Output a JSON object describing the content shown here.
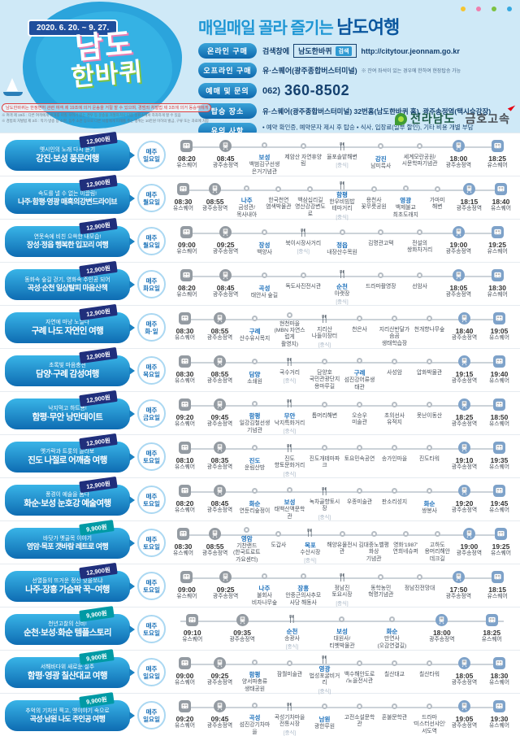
{
  "header": {
    "date_range": "2020. 6. 20. ~ 9. 27.",
    "logo_top": "남도",
    "logo_bottom": "한바퀴",
    "title_light": "매일매일 골라 즐기는 ",
    "title_bold": "남도여행",
    "dot_colors": [
      "#f5c531",
      "#ef7fae",
      "#7dc242",
      "#35a8e0"
    ],
    "online": {
      "label": "온라인 구매",
      "prefix": "검색창에",
      "search_word": "남도한바퀴",
      "search_btn": "검색",
      "url": "http://citytour.jeonnam.go.kr"
    },
    "offline": {
      "label": "오프라인 구매",
      "value": "유·스퀘어(광주종합버스터미널)",
      "note": "※ 잔여 좌석이 있는 경우에 한하여 현장탑승 가능"
    },
    "booking": {
      "label": "예매 및 문의",
      "area_code": "062)",
      "phone": "360-8502"
    },
    "boarding": {
      "label": "탑승 장소",
      "value": "유·스퀘어(광주종합버스터미널) 32번홈(남도한바퀴 홈), 광주송정역(택시승강장)"
    },
    "caution": {
      "label": "유의 사항",
      "lines": "• 예약 확인증, 예약문자 제시 후 탑승 • 식사, 입장료(일부 할인), 기타 비용 개별 부담\n• 날씨(기상 악화)와 도로상황 등으로 시간 및 코스 변경 가능(대체 코스 운행)\n• 차량 보험만 포함(여행자 보험 불포함)"
    },
    "notice_red": "남도한바퀴는 한정면허 관련 여객 제 19조에 의거 운송을 거절 할 수 있으며, 경범죄 처벌법 제 3조에 의거 동승객에게 고발당할 수 있습니다",
    "notice_fine1": "※ 여객 제 19조 : 다른 여객에게 위해를 끼칠 우려가 있는 경우 등 운송을 거절하거나 다음 정류소에서 하차하게 할 수 있음",
    "notice_fine2": "※ 경범죄 처벌법 제 3조 : 악기·방송 등 소란, 음주 소란 등으로 다른 사람에게 피해를 주는 행위는 10만원 이하의 벌금, 구류 또는 과료에 처함",
    "brand_jeonnam": "전라남도",
    "brand_kumho": "금호고속"
  },
  "labels": {
    "meal": "[중식]",
    "weekly": "매주"
  },
  "tours": [
    {
      "price": "12,900원",
      "price_style": "navy",
      "subtitle": "옛시인의 노래 다시 듣기",
      "title": "강진·보성 풍문여행",
      "day": "일요일",
      "stops": [
        {
          "type": "bus",
          "time": "08:20",
          "name": "유스퀘어"
        },
        {
          "type": "train",
          "time": "08:45",
          "name": "광주송정역"
        },
        {
          "type": "stop",
          "city": "보성",
          "name": "백범김구선생\n은거기념관"
        },
        {
          "type": "stop",
          "name": "제암산 자연휴양림"
        },
        {
          "type": "meal",
          "name": "율포솔밭해변"
        },
        {
          "type": "stop",
          "city": "강진",
          "name": "남미륵사"
        },
        {
          "type": "stop",
          "name": "세계모란공원/\n시문학파기념관"
        },
        {
          "type": "train-end",
          "time": "18:00",
          "name": "광주송정역"
        },
        {
          "type": "bus-end",
          "time": "18:25",
          "name": "유스퀘어"
        }
      ]
    },
    {
      "price": "12,900원",
      "price_style": "navy",
      "subtitle": "속도를 낼 수 없는 이끌림!",
      "title": "나주·함평·영광 매혹의강변드라이브",
      "day": "월요일",
      "stops": [
        {
          "type": "bus",
          "time": "08:30",
          "name": "유스퀘어"
        },
        {
          "type": "train",
          "time": "08:55",
          "name": "광주송정역"
        },
        {
          "type": "stop",
          "city": "나주",
          "name": "금성관/\n목사내아"
        },
        {
          "type": "stop",
          "name": "한국천연\n염색박물관"
        },
        {
          "type": "stop",
          "name": "백삼십리길\n영산강강변도로"
        },
        {
          "type": "meal",
          "city": "함평",
          "name": "한우비빔밥\n테마거리"
        },
        {
          "type": "stop",
          "name": "용천사\n꽃무릇공원"
        },
        {
          "type": "stop",
          "city": "영광",
          "name": "백제불교\n최초도래지"
        },
        {
          "type": "stop",
          "name": "가마미\n해변"
        },
        {
          "type": "train-end",
          "time": "18:15",
          "name": "광주송정역"
        },
        {
          "type": "bus-end",
          "time": "18:40",
          "name": "유스퀘어"
        }
      ]
    },
    {
      "price": "12,900원",
      "price_style": "navy",
      "subtitle": "연못속에 비친 으쓱한 내모습!",
      "title": "장성·정읍 행복한 입꼬리 여행",
      "day": "월요일",
      "stops": [
        {
          "type": "bus",
          "time": "09:00",
          "name": "유스퀘어"
        },
        {
          "type": "train",
          "time": "09:25",
          "name": "광주송정역"
        },
        {
          "type": "stop",
          "city": "장성",
          "name": "백양사"
        },
        {
          "type": "meal",
          "name": "북이시장사거리"
        },
        {
          "type": "stop",
          "city": "정읍",
          "name": "내장산수목원"
        },
        {
          "type": "stop",
          "name": "김명관고택"
        },
        {
          "type": "stop",
          "name": "전설의\n쌍화차거리"
        },
        {
          "type": "train-end",
          "time": "19:00",
          "name": "광주송정역"
        },
        {
          "type": "bus-end",
          "time": "19:25",
          "name": "유스퀘어"
        }
      ]
    },
    {
      "price": "12,900원",
      "price_style": "navy",
      "subtitle": "동화속 숲길 걷기, 영화속 주인공 되어",
      "title": "곡성·순천 일상탈피 마음산책",
      "day": "화요일",
      "stops": [
        {
          "type": "bus",
          "time": "08:20",
          "name": "유스퀘어"
        },
        {
          "type": "train",
          "time": "08:45",
          "name": "광주송정역"
        },
        {
          "type": "stop",
          "city": "곡성",
          "name": "태안사 숲길"
        },
        {
          "type": "stop",
          "name": "독도사진전시관"
        },
        {
          "type": "meal",
          "city": "순천",
          "name": "아랫장"
        },
        {
          "type": "stop",
          "name": "드라마촬영장"
        },
        {
          "type": "stop",
          "name": "선암사"
        },
        {
          "type": "train-end",
          "time": "18:05",
          "name": "광주송정역"
        },
        {
          "type": "bus-end",
          "time": "18:30",
          "name": "유스퀘어"
        }
      ]
    },
    {
      "price": "12,900원",
      "price_style": "navy",
      "subtitle": "자연에 마냥 노닐다",
      "title": "구례 나도 자연인 여행",
      "day": "화·일",
      "stops": [
        {
          "type": "bus",
          "time": "08:30",
          "name": "유스퀘어"
        },
        {
          "type": "train",
          "time": "08:55",
          "name": "광주송정역"
        },
        {
          "type": "stop",
          "city": "구례",
          "name": "산수유시목지"
        },
        {
          "type": "stop",
          "name": "현천마을\n(MBN 자연스럽게\n촬영지)"
        },
        {
          "type": "meal",
          "name": "지리산\n나들이장터"
        },
        {
          "type": "stop",
          "name": "천은사"
        },
        {
          "type": "stop",
          "name": "지리산반달가슴곰\n생태학습장"
        },
        {
          "type": "stop",
          "name": "천개향나무숲"
        },
        {
          "type": "train-end",
          "time": "18:40",
          "name": "광주송정역"
        },
        {
          "type": "bus-end",
          "time": "19:05",
          "name": "유스퀘어"
        }
      ]
    },
    {
      "price": "12,900원",
      "price_style": "navy",
      "subtitle": "초록빛 마음충전",
      "title": "담양·구례 감성여행",
      "day": "목요일",
      "stops": [
        {
          "type": "bus",
          "time": "08:30",
          "name": "유스퀘어"
        },
        {
          "type": "train",
          "time": "08:55",
          "name": "광주송정역"
        },
        {
          "type": "stop",
          "city": "담양",
          "name": "소쇄원"
        },
        {
          "type": "meal",
          "name": "국수거리"
        },
        {
          "type": "stop",
          "name": "담양호\n국민관광단지\n용마루길"
        },
        {
          "type": "stop",
          "city": "구례",
          "name": "섬진강어류생태관"
        },
        {
          "type": "stop",
          "name": "사성암"
        },
        {
          "type": "stop",
          "name": "압화박물관"
        },
        {
          "type": "train-end",
          "time": "19:15",
          "name": "광주송정역"
        },
        {
          "type": "bus-end",
          "time": "19:40",
          "name": "유스퀘어"
        }
      ]
    },
    {
      "price": "12,900원",
      "price_style": "navy",
      "subtitle": "낙지먹고 하트뿅!",
      "title": "함평·무안 낭만데이트",
      "day": "금요일",
      "stops": [
        {
          "type": "bus",
          "time": "09:20",
          "name": "유스퀘어"
        },
        {
          "type": "train",
          "time": "09:45",
          "name": "광주송정역"
        },
        {
          "type": "stop",
          "city": "함평",
          "name": "일강김철선생\n기념관"
        },
        {
          "type": "meal",
          "city": "무안",
          "name": "낙지특화거리"
        },
        {
          "type": "stop",
          "name": "톱머리해변"
        },
        {
          "type": "stop",
          "name": "오승우\n미술관"
        },
        {
          "type": "stop",
          "name": "초의선사\n유적지"
        },
        {
          "type": "stop",
          "name": "못난이동산"
        },
        {
          "type": "train-end",
          "time": "18:25",
          "name": "광주송정역"
        },
        {
          "type": "bus-end",
          "time": "18:50",
          "name": "유스퀘어"
        }
      ]
    },
    {
      "price": "12,900원",
      "price_style": "navy",
      "subtitle": "옛가락과 트롯의 콜라보",
      "title": "진도 나절로 어깨춤 여행",
      "day": "토요일",
      "stops": [
        {
          "type": "bus",
          "time": "08:10",
          "name": "유스퀘어"
        },
        {
          "type": "train",
          "time": "08:35",
          "name": "광주송정역"
        },
        {
          "type": "stop",
          "city": "진도",
          "name": "운림산방"
        },
        {
          "type": "meal",
          "name": "진도\n향토문화거리"
        },
        {
          "type": "stop",
          "name": "진도개테마파크"
        },
        {
          "type": "stop",
          "name": "토요민속공연"
        },
        {
          "type": "stop",
          "name": "송가인마을"
        },
        {
          "type": "stop",
          "name": "진도타워"
        },
        {
          "type": "train-end",
          "time": "19:10",
          "name": "광주송정역"
        },
        {
          "type": "bus-end",
          "time": "19:35",
          "name": "유스퀘어"
        }
      ]
    },
    {
      "price": "12,900원",
      "price_style": "navy",
      "subtitle": "풍경이 예술을 품다",
      "title": "화순·보성 눈호강 예술여행",
      "day": "토요일",
      "stops": [
        {
          "type": "bus",
          "time": "08:20",
          "name": "유스퀘어"
        },
        {
          "type": "train",
          "time": "08:45",
          "name": "광주송정역"
        },
        {
          "type": "stop",
          "city": "화순",
          "name": "연둔리숲정이"
        },
        {
          "type": "stop",
          "city": "보성",
          "name": "태백산맥문학관"
        },
        {
          "type": "meal",
          "name": "녹차골향토시장"
        },
        {
          "type": "stop",
          "name": "우종미술관"
        },
        {
          "type": "stop",
          "name": "판소리성지"
        },
        {
          "type": "stop",
          "city": "화순",
          "name": "쌍봉사"
        },
        {
          "type": "train-end",
          "time": "19:20",
          "name": "광주송정역"
        },
        {
          "type": "bus-end",
          "time": "19:45",
          "name": "유스퀘어"
        }
      ]
    },
    {
      "price": "9,900원",
      "price_style": "teal",
      "subtitle": "바닷가 옛골목 이야기",
      "title": "영암·목포 갯바람 레트로 여행",
      "day": "토요일",
      "stops": [
        {
          "type": "bus",
          "time": "08:30",
          "name": "유스퀘어"
        },
        {
          "type": "train",
          "time": "08:55",
          "name": "광주송정역"
        },
        {
          "type": "stop",
          "city": "영암",
          "name": "기찬랜드\n(한국트로트가요센터)"
        },
        {
          "type": "stop",
          "name": "도갑사"
        },
        {
          "type": "meal",
          "city": "목포",
          "name": "수산시장"
        },
        {
          "type": "stop",
          "name": "해양유물전시관"
        },
        {
          "type": "stop",
          "name": "김대중노벨평화상\n기념관"
        },
        {
          "type": "stop",
          "name": "영화'1987'\n연희네슈퍼"
        },
        {
          "type": "stop",
          "name": "고하도\n용머리해안\n데크길"
        },
        {
          "type": "train-end",
          "time": "19:00",
          "name": "광주송정역"
        },
        {
          "type": "bus-end",
          "time": "19:25",
          "name": "유스퀘어"
        }
      ]
    },
    {
      "price": "12,900원",
      "price_style": "navy",
      "subtitle": "선열들의 뜨거운 정신 잊을쏘냐",
      "title": "나주·장흥 가슴팍 꾹~여행",
      "day": "토요일",
      "stops": [
        {
          "type": "bus",
          "time": "09:00",
          "name": "유스퀘어"
        },
        {
          "type": "train",
          "time": "09:25",
          "name": "광주송정역"
        },
        {
          "type": "stop",
          "city": "나주",
          "name": "불회사\n비자나무숲"
        },
        {
          "type": "stop",
          "city": "장흥",
          "name": "안중근의사추모\n사당 해동사"
        },
        {
          "type": "meal",
          "name": "정남진\n토요시장"
        },
        {
          "type": "stop",
          "name": "동학농민\n혁명기념관"
        },
        {
          "type": "stop",
          "name": "정남진전망대"
        },
        {
          "type": "train-end",
          "time": "17:50",
          "name": "광주송정역"
        },
        {
          "type": "bus-end",
          "time": "18:15",
          "name": "유스퀘어"
        }
      ]
    },
    {
      "price": "9,900원",
      "price_style": "teal",
      "subtitle": "천년고찰의 신비!",
      "title": "순천·보성·화순 템플스토리",
      "day": "토요일",
      "stops": [
        {
          "type": "bus",
          "time": "09:10",
          "name": "유스퀘어"
        },
        {
          "type": "train",
          "time": "09:35",
          "name": "광주송정역"
        },
        {
          "type": "meal",
          "city": "순천",
          "name": "송광사"
        },
        {
          "type": "stop",
          "city": "보성",
          "name": "대원사/\n티벳박물관"
        },
        {
          "type": "stop",
          "city": "화순",
          "name": "만연사\n(오감연결길)"
        },
        {
          "type": "train-end",
          "time": "18:00",
          "name": "광주송정역"
        },
        {
          "type": "bus-end",
          "time": "18:25",
          "name": "유스퀘어"
        }
      ]
    },
    {
      "price": "9,900원",
      "price_style": "teal",
      "subtitle": "서해바다위 새로운 질주",
      "title": "함평·영광 칠산대교 여행",
      "day": "일요일",
      "stops": [
        {
          "type": "bus",
          "time": "09:00",
          "name": "유스퀘어"
        },
        {
          "type": "train",
          "time": "09:25",
          "name": "광주송정역"
        },
        {
          "type": "stop",
          "city": "함평",
          "name": "양서파충류\n생태공원"
        },
        {
          "type": "stop",
          "name": "잠월미술관"
        },
        {
          "type": "meal",
          "city": "영광",
          "name": "법성포굴비거리"
        },
        {
          "type": "stop",
          "name": "백수해안도로\n/노을전시관"
        },
        {
          "type": "stop",
          "name": "칠산대교"
        },
        {
          "type": "stop",
          "name": "칠산타워"
        },
        {
          "type": "train-end",
          "time": "18:05",
          "name": "광주송정역"
        },
        {
          "type": "bus-end",
          "time": "18:30",
          "name": "유스퀘어"
        }
      ]
    },
    {
      "price": "9,900원",
      "price_style": "teal",
      "subtitle": "추억의 기차씬 찍고, 옛이야기 속으로",
      "title": "곡성·남원 나도 주인공 여행",
      "day": "일요일",
      "stops": [
        {
          "type": "bus",
          "time": "09:20",
          "name": "유스퀘어"
        },
        {
          "type": "train",
          "time": "09:45",
          "name": "광주송정역"
        },
        {
          "type": "stop",
          "city": "곡성",
          "name": "섬진강기차마을"
        },
        {
          "type": "meal",
          "name": "곡성기차마을\n전통시장"
        },
        {
          "type": "stop",
          "city": "남원",
          "name": "광한루원"
        },
        {
          "type": "stop",
          "name": "고전소설문학관"
        },
        {
          "type": "stop",
          "name": "혼불문학관"
        },
        {
          "type": "stop",
          "name": "드라마\n'미스터선샤인'\n서도역"
        },
        {
          "type": "train-end",
          "time": "19:05",
          "name": "광주송정역"
        },
        {
          "type": "bus-end",
          "time": "19:30",
          "name": "유스퀘어"
        }
      ]
    }
  ]
}
